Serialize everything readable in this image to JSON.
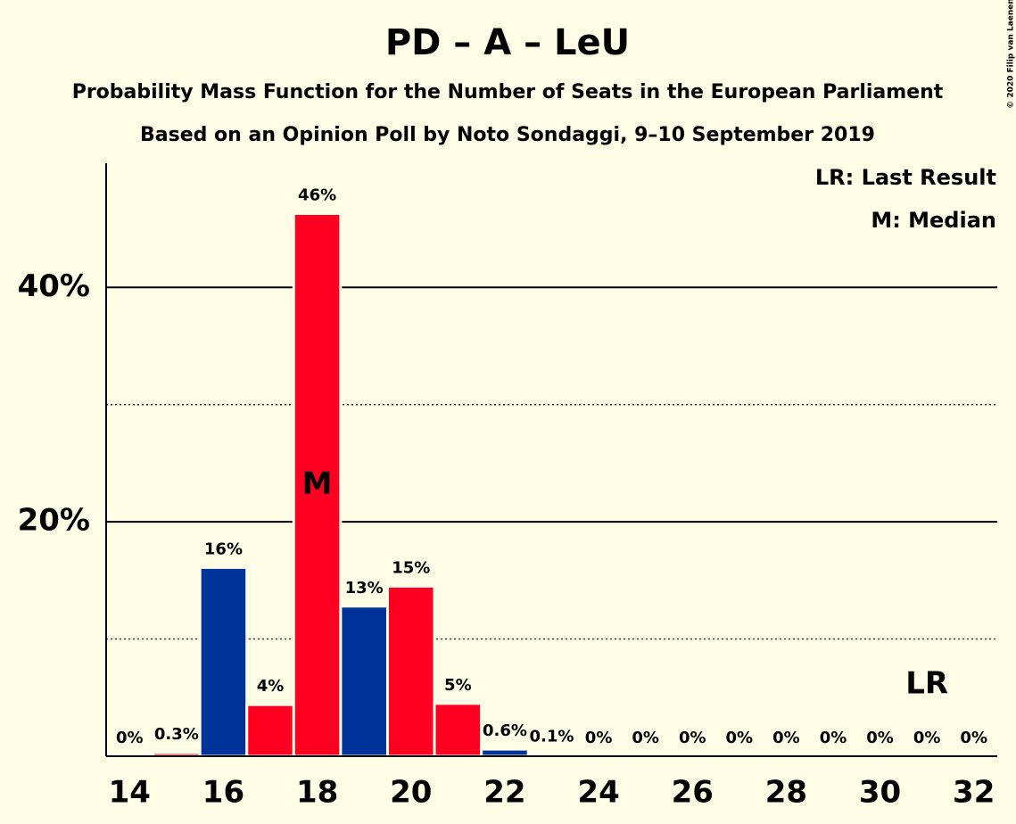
{
  "chart_data": {
    "type": "bar",
    "title": "PD – A – LeU",
    "subtitle": "Probability Mass Function for the Number of Seats in the European Parliament",
    "subtitle2": "Based on an Opinion Poll by Noto Sondaggi, 9–10 September 2019",
    "copyright": "© 2020 Filip van Laenen",
    "legend": [
      "LR: Last Result",
      "M: Median"
    ],
    "x": [
      14,
      15,
      16,
      17,
      18,
      19,
      20,
      21,
      22,
      23,
      24,
      25,
      26,
      27,
      28,
      29,
      30,
      31,
      32
    ],
    "values": [
      0,
      0.3,
      16.1,
      4.4,
      46.3,
      12.8,
      14.5,
      4.5,
      0.6,
      0.1,
      0,
      0,
      0,
      0,
      0,
      0,
      0,
      0,
      0
    ],
    "value_labels": [
      "0%",
      "0.3%",
      "16%",
      "4%",
      "46%",
      "13%",
      "15%",
      "5%",
      "0.6%",
      "0.1%",
      "0%",
      "0%",
      "0%",
      "0%",
      "0%",
      "0%",
      "0%",
      "0%",
      "0%"
    ],
    "colors": [
      "#ff0022",
      "#ff0022",
      "#003399",
      "#ff0022",
      "#ff0022",
      "#003399",
      "#ff0022",
      "#ff0022",
      "#003399",
      "#ff0022",
      "#ff0022",
      "#ff0022",
      "#ff0022",
      "#ff0022",
      "#ff0022",
      "#ff0022",
      "#ff0022",
      "#ff0022",
      "#ff0022"
    ],
    "annotations": [
      {
        "text": "M",
        "x": 18
      },
      {
        "text": "LR",
        "x": 31
      }
    ],
    "xlim": [
      13.5,
      32.5
    ],
    "xticks": [
      14,
      16,
      18,
      20,
      22,
      24,
      26,
      28,
      30,
      32
    ],
    "ylim": [
      0,
      50.6
    ],
    "yticks": [
      {
        "value": 20,
        "label": "20%"
      },
      {
        "value": 40,
        "label": "40%"
      }
    ],
    "minor_yticks": [
      10,
      30
    ],
    "grid": true
  }
}
